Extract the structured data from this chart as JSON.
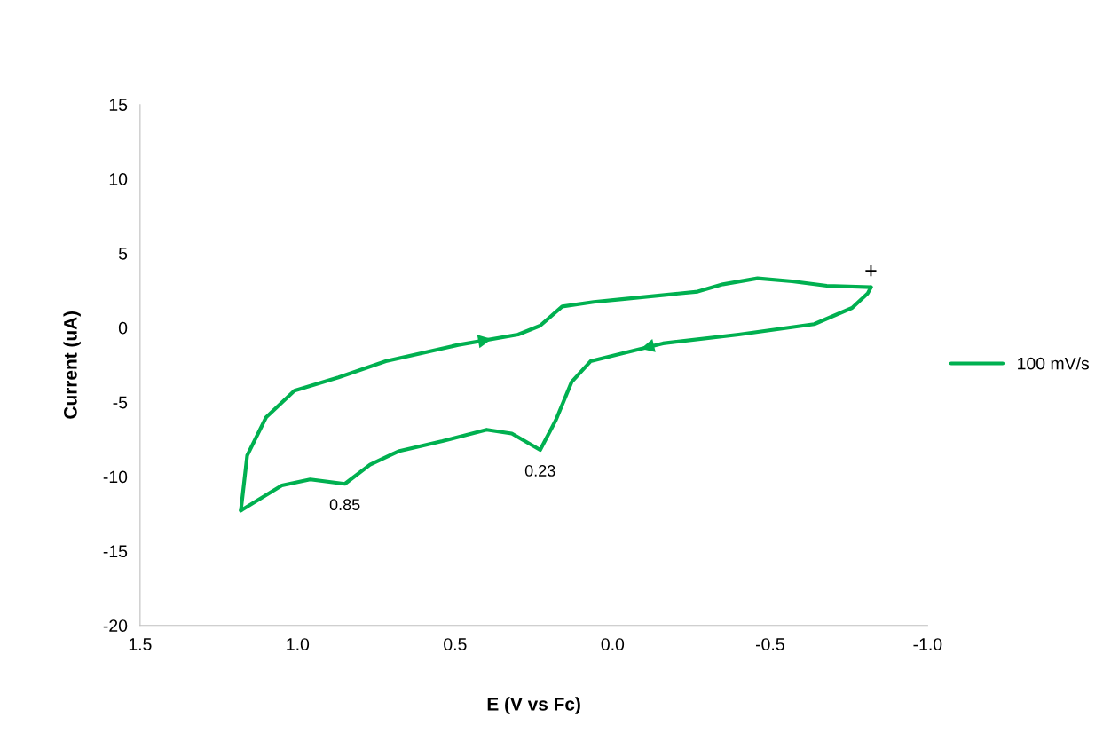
{
  "chart_data": {
    "type": "line",
    "xlabel": "E (V vs Fc)",
    "ylabel": "Current (uA)",
    "series": [
      {
        "name": "100 mV/s",
        "color": "#00b050",
        "x": [
          -0.82,
          -0.81,
          -0.76,
          -0.64,
          -0.4,
          -0.16,
          -0.03,
          0.07,
          0.13,
          0.18,
          0.23,
          0.32,
          0.4,
          0.54,
          0.68,
          0.77,
          0.85,
          0.96,
          1.05,
          1.18
        ],
        "values": [
          2.72,
          2.32,
          1.33,
          0.24,
          -0.46,
          -1.05,
          -1.73,
          -2.25,
          -3.64,
          -6.2,
          -8.21,
          -7.11,
          -6.85,
          -7.61,
          -8.3,
          -9.2,
          -10.49,
          -10.19,
          -10.59,
          -12.28
        ]
      },
      {
        "color": "#00b050",
        "x": [
          1.18,
          1.16,
          1.1,
          1.01,
          0.87,
          0.72,
          0.49,
          0.3,
          0.23,
          0.16,
          0.06,
          -0.03,
          -0.27,
          -0.35,
          -0.46,
          -0.57,
          -0.68,
          -0.82
        ],
        "values": [
          -12.28,
          -8.58,
          -6.02,
          -4.23,
          -3.34,
          -2.25,
          -1.15,
          -0.46,
          0.14,
          1.43,
          1.73,
          1.92,
          2.43,
          2.92,
          3.32,
          3.12,
          2.82,
          2.72
        ]
      }
    ],
    "xlim": [
      1.5,
      -1.0
    ],
    "xticks": [
      {
        "value": 1.5,
        "label": "1.5"
      },
      {
        "value": 1.0,
        "label": "1.0"
      },
      {
        "value": 0.5,
        "label": "0.5"
      },
      {
        "value": 0.0,
        "label": "0.0"
      },
      {
        "value": -0.5,
        "label": "-0.5"
      },
      {
        "value": -1.0,
        "label": "-1.0"
      }
    ],
    "ylim": [
      -20,
      15
    ],
    "yticks": [
      {
        "value": -20,
        "label": "-20"
      },
      {
        "value": -15,
        "label": "-15"
      },
      {
        "value": -10,
        "label": "-10"
      },
      {
        "value": -5,
        "label": "-5"
      },
      {
        "value": 0,
        "label": "0"
      },
      {
        "value": 5,
        "label": "5"
      },
      {
        "value": 10,
        "label": "10"
      },
      {
        "value": 15,
        "label": "15"
      }
    ],
    "annotations": [
      {
        "text": "0.85",
        "x": 0.85,
        "y": -10.49
      },
      {
        "text": "0.23",
        "x": 0.23,
        "y": -8.21
      },
      {
        "text": "+",
        "x": -0.82,
        "y": 2.72
      }
    ],
    "grid": false,
    "legend": "right",
    "marker": "none",
    "line_style": "solid"
  }
}
